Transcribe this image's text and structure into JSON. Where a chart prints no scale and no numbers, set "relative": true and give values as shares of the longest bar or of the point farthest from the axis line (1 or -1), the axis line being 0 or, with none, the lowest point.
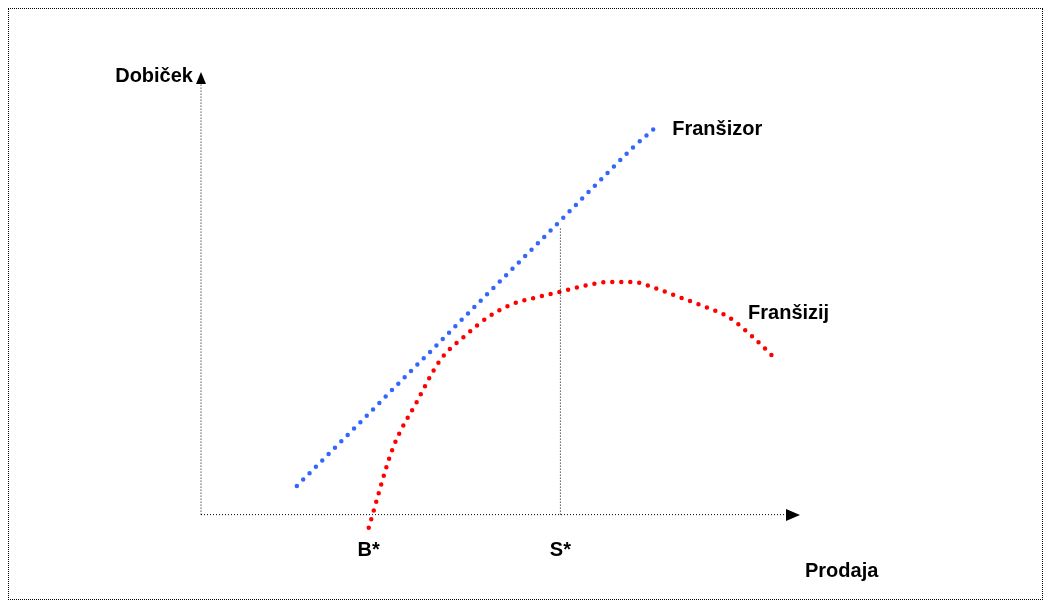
{
  "chart_data": {
    "type": "line",
    "relative": true,
    "xlabel": "Prodaja",
    "ylabel": "Dobiček",
    "line_style": "dotted",
    "categories": [
      null,
      null,
      null,
      null,
      null,
      null,
      null,
      "B*",
      null,
      null,
      null,
      null,
      null,
      null,
      null,
      "S*",
      null,
      null,
      null,
      null,
      null,
      null,
      null,
      null,
      null,
      null
    ],
    "ref_lines": [
      {
        "axis": "x",
        "value": "S*",
        "color": "#000000",
        "line_style": "dotted"
      }
    ],
    "series": [
      {
        "name": "Franšizor",
        "color": "#3366ff",
        "values": [
          null,
          null,
          null,
          null,
          0.074,
          0.136,
          0.198,
          0.26,
          0.323,
          0.385,
          0.447,
          0.51,
          0.572,
          0.634,
          0.696,
          0.758,
          0.821,
          0.883,
          0.945,
          1,
          null,
          null,
          null,
          null,
          null,
          null
        ]
      },
      {
        "name": "Franšizij",
        "color": "#ff0000",
        "values": [
          null,
          null,
          null,
          null,
          null,
          null,
          null,
          -0.034,
          0.17,
          0.29,
          0.4,
          0.46,
          0.51,
          0.543,
          0.56,
          0.575,
          0.59,
          0.6,
          0.6,
          0.583,
          0.56,
          0.537,
          0.51,
          0.46,
          0.4,
          null
        ]
      }
    ]
  }
}
